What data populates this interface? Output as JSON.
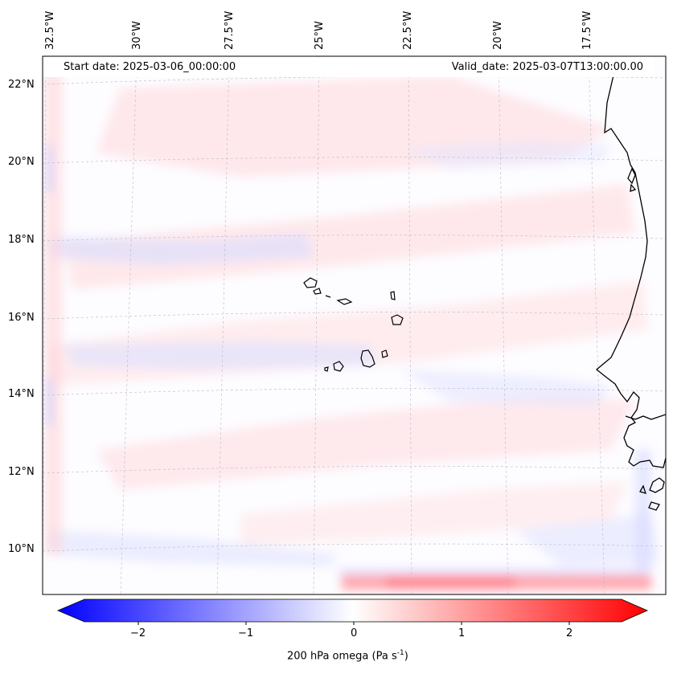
{
  "map": {
    "start_date": "Start date: 2025-03-06_00:00:00",
    "valid_date": "Valid_date: 2025-03-07T13:00:00.00",
    "variable": "200 hPa omega",
    "units": "Pa s",
    "units_exponent": "-1",
    "lon_labels": [
      "32.5°W",
      "30°W",
      "27.5°W",
      "25°W",
      "22.5°W",
      "20°W",
      "17.5°W"
    ],
    "lat_labels": [
      "22°N",
      "20°N",
      "18°N",
      "16°N",
      "14°N",
      "12°N",
      "10°N"
    ],
    "colorbar": {
      "ticks": [
        "−2",
        "−1",
        "0",
        "1",
        "2"
      ],
      "min": -2.7,
      "max": 2.7,
      "colors": {
        "negative": "#0000ff",
        "neutral": "#ffffff",
        "positive": "#ff0000"
      }
    },
    "features": [
      "Cape Verde Islands",
      "West African coastline"
    ]
  }
}
